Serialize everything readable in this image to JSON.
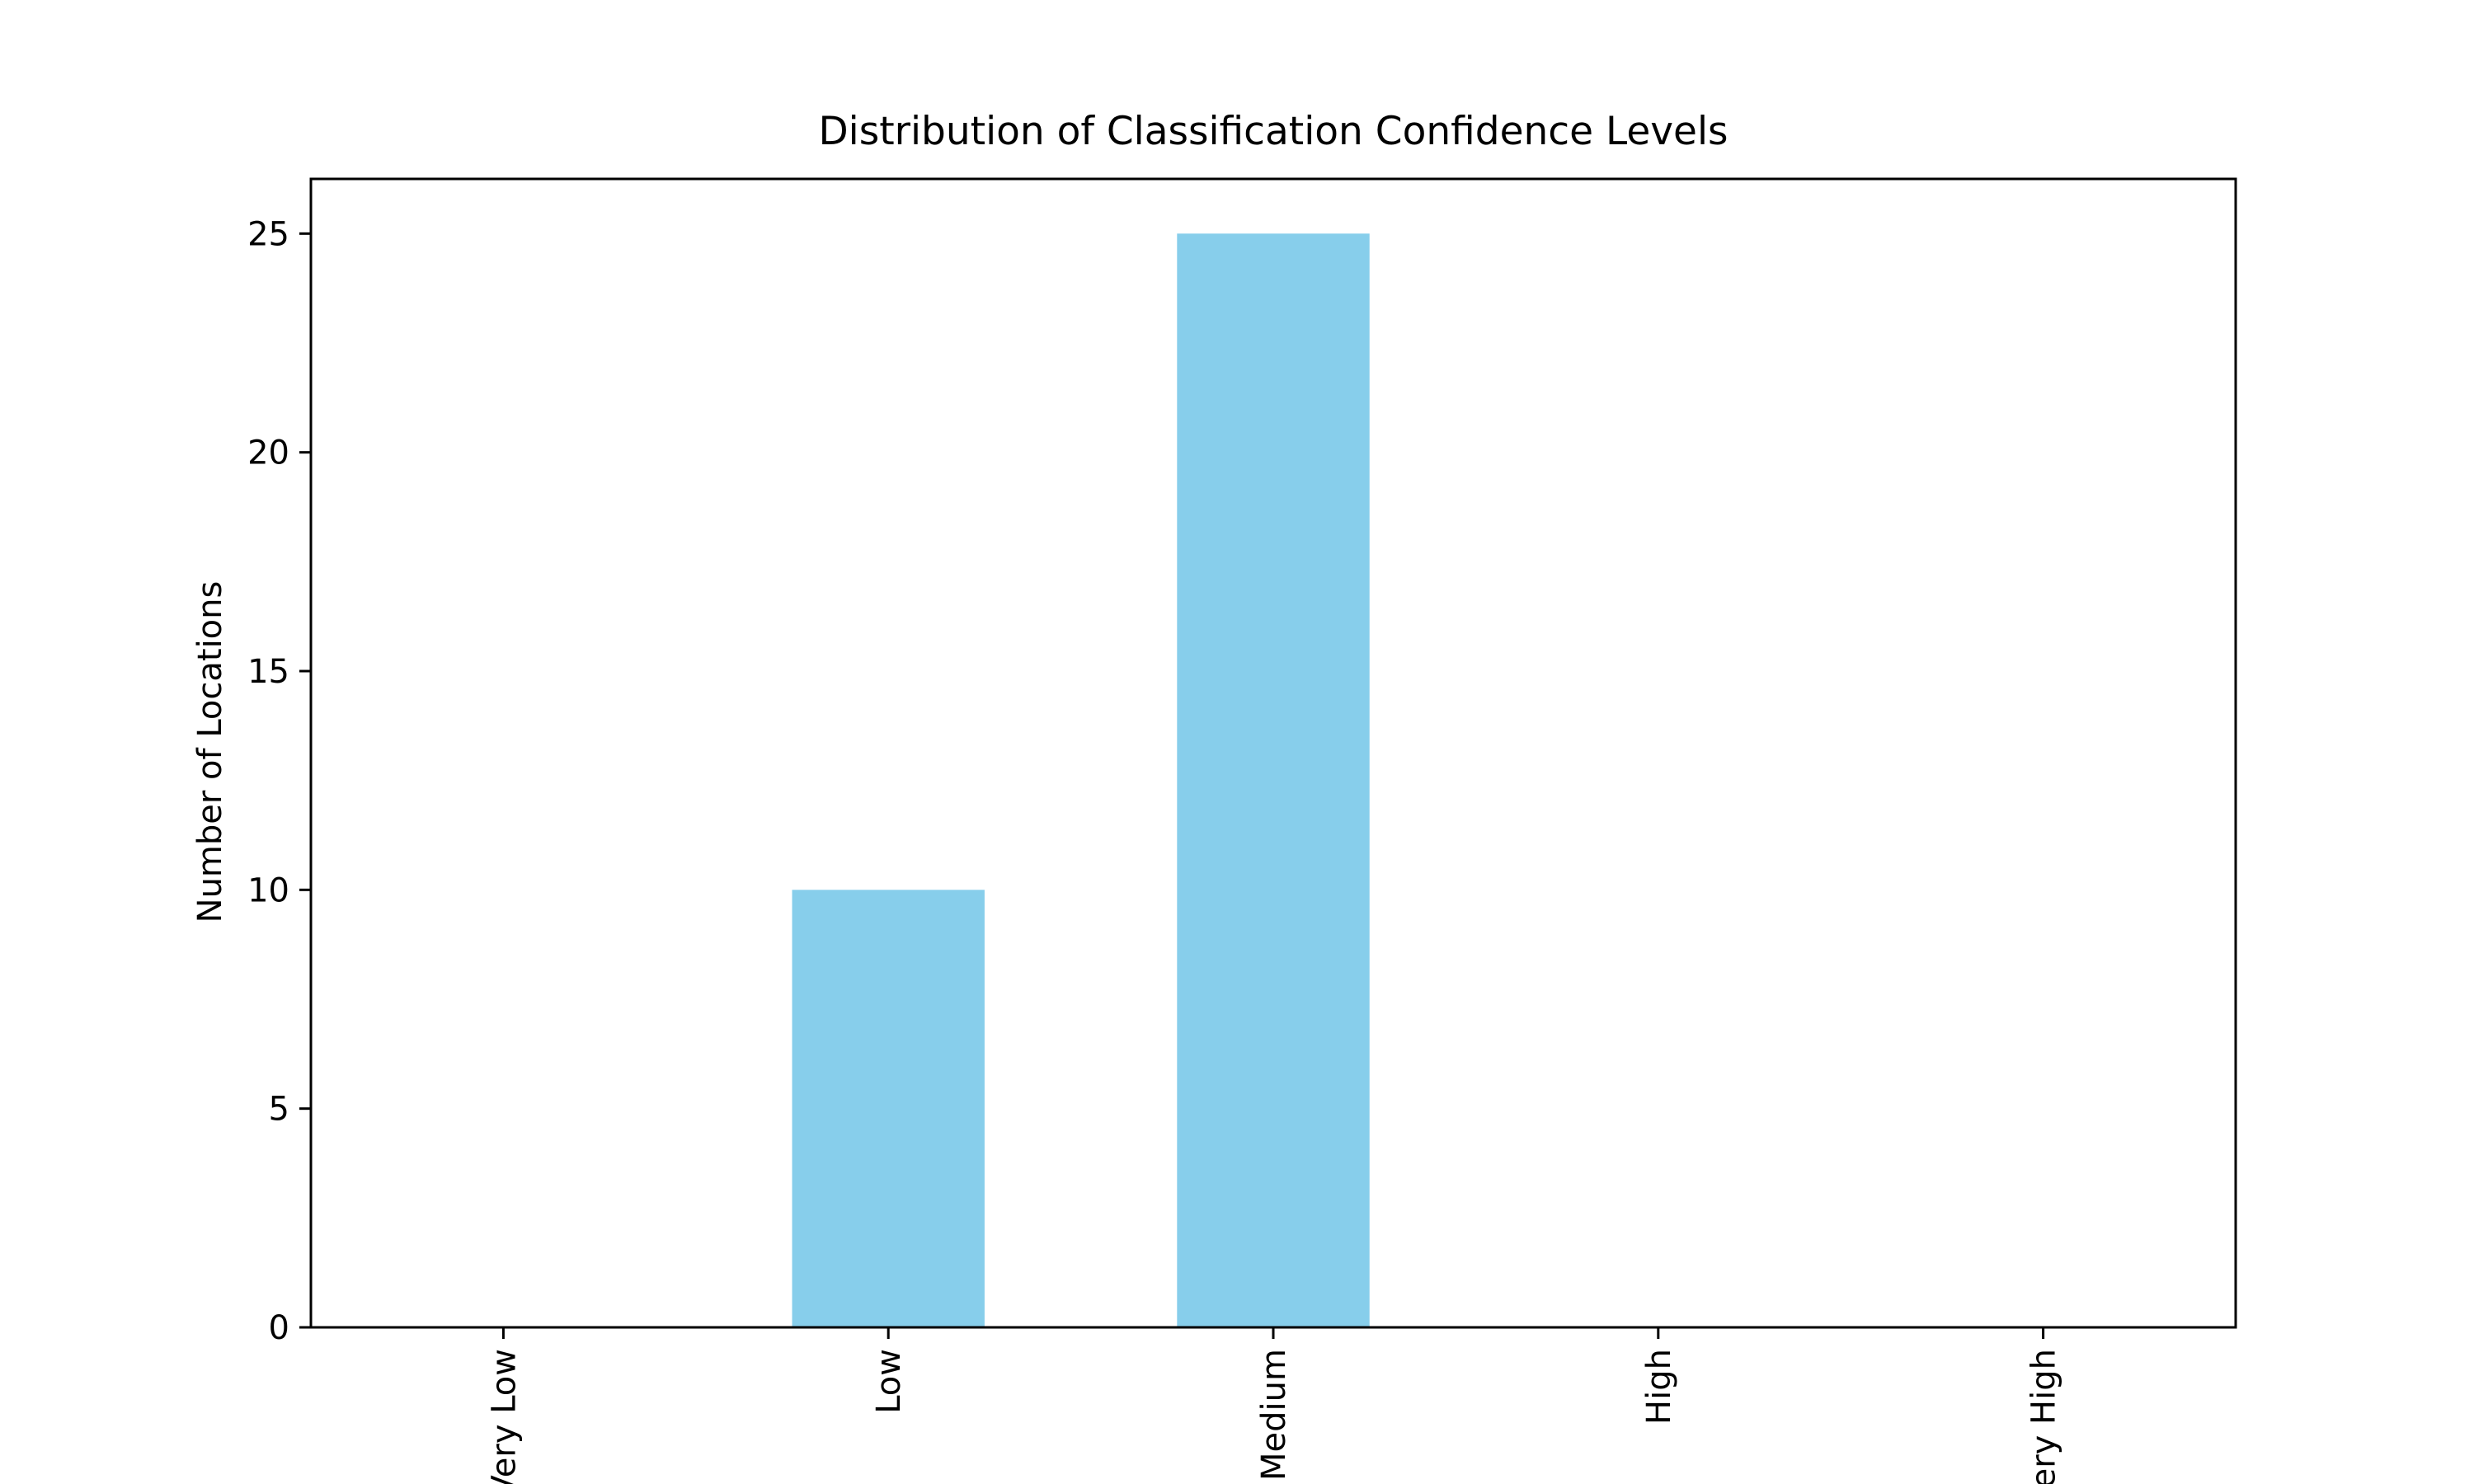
{
  "chart_data": {
    "type": "bar",
    "title": "Distribution of Classification Confidence Levels",
    "xlabel": "",
    "ylabel": "Number of Locations",
    "categories": [
      "Very Low",
      "Low",
      "Medium",
      "High",
      "Very High"
    ],
    "values": [
      0,
      10,
      25,
      0,
      0
    ],
    "ylim": [
      0,
      26.25
    ],
    "yticks": [
      0,
      5,
      10,
      15,
      20,
      25
    ],
    "grid": false,
    "legend": "none",
    "bar_color": "#87CEEB"
  }
}
